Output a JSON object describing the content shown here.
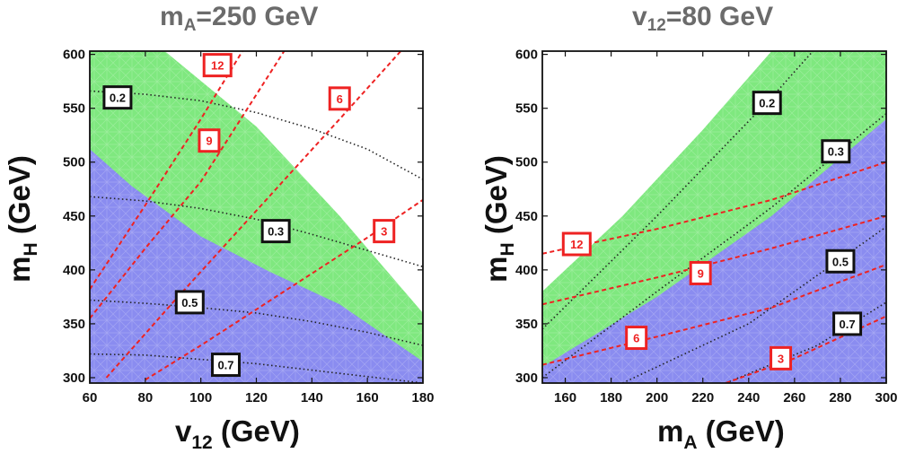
{
  "chart_data": [
    {
      "type": "contour",
      "title_main": "m",
      "title_sub": "A",
      "title_rest": "=250 GeV",
      "xlabel_main": "v",
      "xlabel_sub": "12",
      "xlabel_rest": " (GeV)",
      "ylabel_main": "m",
      "ylabel_sub": "H",
      "ylabel_rest": " (GeV)",
      "xlim": [
        60,
        180
      ],
      "ylim": [
        295,
        603
      ],
      "xticks": [
        60,
        80,
        100,
        120,
        140,
        160,
        180
      ],
      "yticks": [
        300,
        350,
        400,
        450,
        500,
        550,
        600
      ],
      "regions": [
        {
          "color": "#7fe87f",
          "polygon": [
            [
              60,
              295
            ],
            [
              60,
              603
            ],
            [
              87,
              603
            ],
            [
              120,
              533
            ],
            [
              150,
              450
            ],
            [
              180,
              360
            ],
            [
              180,
              295
            ]
          ]
        },
        {
          "color": "#8a8cf0",
          "polygon": [
            [
              60,
              295
            ],
            [
              60,
              512
            ],
            [
              75,
              478
            ],
            [
              100,
              431
            ],
            [
              125,
              398
            ],
            [
              150,
              368
            ],
            [
              180,
              315
            ],
            [
              180,
              295
            ]
          ]
        }
      ],
      "black_contours": [
        {
          "label": "0.2",
          "label_at": [
            70,
            560
          ],
          "points": [
            [
              60,
              566
            ],
            [
              80,
              563
            ],
            [
              100,
              557
            ],
            [
              120,
              546
            ],
            [
              140,
              531
            ],
            [
              160,
              512
            ],
            [
              180,
              484
            ]
          ]
        },
        {
          "label": "0.3",
          "label_at": [
            127,
            436
          ],
          "points": [
            [
              60,
              468
            ],
            [
              80,
              464
            ],
            [
              100,
              457
            ],
            [
              120,
              447
            ],
            [
              140,
              433
            ],
            [
              160,
              418
            ],
            [
              180,
              403
            ]
          ]
        },
        {
          "label": "0.5",
          "label_at": [
            96,
            370
          ],
          "points": [
            [
              60,
              372
            ],
            [
              80,
              369
            ],
            [
              100,
              365
            ],
            [
              120,
              360
            ],
            [
              140,
              352
            ],
            [
              160,
              342
            ],
            [
              180,
              330
            ]
          ]
        },
        {
          "label": "0.7",
          "label_at": [
            109,
            312
          ],
          "points": [
            [
              60,
              322
            ],
            [
              80,
              321
            ],
            [
              100,
              317
            ],
            [
              120,
              313
            ],
            [
              140,
              307
            ],
            [
              160,
              301
            ],
            [
              180,
              295
            ]
          ]
        }
      ],
      "red_contours": [
        {
          "label": "12",
          "label_at": [
            106,
            590
          ],
          "points": [
            [
              60,
              382
            ],
            [
              80,
              460
            ],
            [
              100,
              540
            ],
            [
              115,
              603
            ]
          ]
        },
        {
          "label": "9",
          "label_at": [
            103,
            520
          ],
          "points": [
            [
              60,
              355
            ],
            [
              80,
              420
            ],
            [
              100,
              482
            ],
            [
              130,
              603
            ]
          ]
        },
        {
          "label": "6",
          "label_at": [
            150,
            559
          ],
          "points": [
            [
              66,
              300
            ],
            [
              90,
              370
            ],
            [
              120,
              455
            ],
            [
              150,
              540
            ],
            [
              172,
              603
            ]
          ]
        },
        {
          "label": "3",
          "label_at": [
            166,
            436
          ],
          "points": [
            [
              80,
              298
            ],
            [
              100,
              330
            ],
            [
              130,
              380
            ],
            [
              160,
              430
            ],
            [
              180,
              465
            ]
          ]
        }
      ]
    },
    {
      "type": "contour",
      "title_main": "v",
      "title_sub": "12",
      "title_rest": "=80 GeV",
      "xlabel_main": "m",
      "xlabel_sub": "A",
      "xlabel_rest": " (GeV)",
      "ylabel_main": "m",
      "ylabel_sub": "H",
      "ylabel_rest": " (GeV)",
      "xlim": [
        150,
        300
      ],
      "ylim": [
        295,
        603
      ],
      "xticks": [
        160,
        180,
        200,
        220,
        240,
        260,
        280,
        300
      ],
      "yticks": [
        300,
        350,
        400,
        450,
        500,
        550,
        600
      ],
      "regions": [
        {
          "color": "#7fe87f",
          "polygon": [
            [
              150,
              295
            ],
            [
              150,
              380
            ],
            [
              185,
              450
            ],
            [
              220,
              530
            ],
            [
              250,
              603
            ],
            [
              300,
              603
            ],
            [
              300,
              295
            ]
          ]
        },
        {
          "color": "#8a8cf0",
          "polygon": [
            [
              150,
              295
            ],
            [
              150,
              310
            ],
            [
              200,
              375
            ],
            [
              250,
              450
            ],
            [
              300,
              540
            ],
            [
              300,
              295
            ]
          ]
        }
      ],
      "black_contours": [
        {
          "label": "0.2",
          "label_at": [
            248,
            555
          ],
          "points": [
            [
              150,
              345
            ],
            [
              200,
              450
            ],
            [
              250,
              560
            ],
            [
              268,
              603
            ]
          ]
        },
        {
          "label": "0.3",
          "label_at": [
            278,
            510
          ],
          "points": [
            [
              150,
              300
            ],
            [
              200,
              380
            ],
            [
              250,
              458
            ],
            [
              300,
              545
            ]
          ]
        },
        {
          "label": "0.5",
          "label_at": [
            280,
            408
          ],
          "points": [
            [
              185,
              295
            ],
            [
              240,
              350
            ],
            [
              300,
              440
            ]
          ]
        },
        {
          "label": "0.7",
          "label_at": [
            283,
            350
          ],
          "points": [
            [
              230,
              295
            ],
            [
              270,
              330
            ],
            [
              300,
              370
            ]
          ]
        }
      ],
      "red_contours": [
        {
          "label": "12",
          "label_at": [
            165,
            424
          ],
          "points": [
            [
              150,
              415
            ],
            [
              200,
              438
            ],
            [
              250,
              465
            ],
            [
              300,
              500
            ]
          ]
        },
        {
          "label": "9",
          "label_at": [
            219,
            397
          ],
          "points": [
            [
              150,
              368
            ],
            [
              200,
              393
            ],
            [
              250,
              420
            ],
            [
              300,
              450
            ]
          ]
        },
        {
          "label": "6",
          "label_at": [
            191,
            337
          ],
          "points": [
            [
              150,
              312
            ],
            [
              200,
              338
            ],
            [
              250,
              365
            ],
            [
              300,
              405
            ]
          ]
        },
        {
          "label": "3",
          "label_at": [
            254,
            318
          ],
          "points": [
            [
              230,
              295
            ],
            [
              260,
              318
            ],
            [
              300,
              357
            ]
          ]
        }
      ]
    }
  ]
}
